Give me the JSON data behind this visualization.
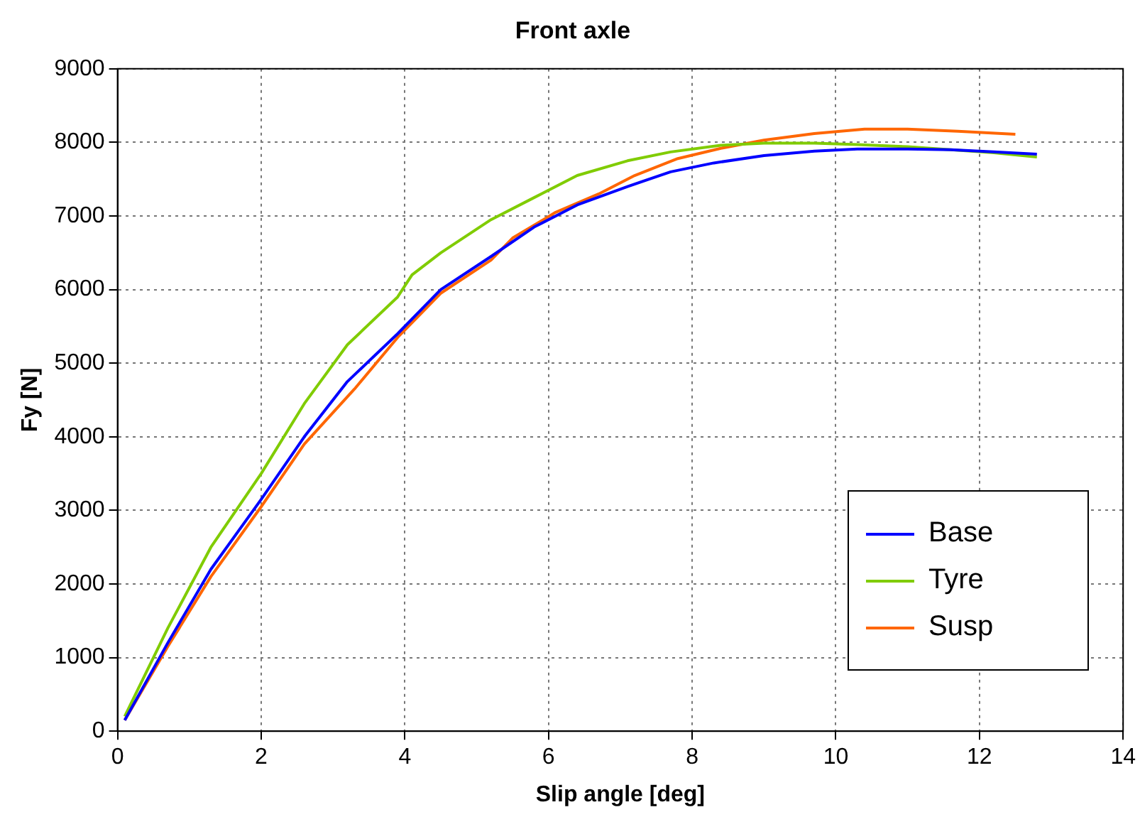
{
  "chart_data": {
    "type": "line",
    "title": "Front axle",
    "xlabel": "Slip angle [deg]",
    "ylabel": "Fy [N]",
    "xlim": [
      0,
      14
    ],
    "xticks": [
      0,
      2,
      4,
      6,
      8,
      10,
      12,
      14
    ],
    "ylim": [
      0,
      9000
    ],
    "yticks": [
      0,
      1000,
      2000,
      3000,
      4000,
      5000,
      6000,
      7000,
      8000,
      9000
    ],
    "grid": true,
    "legend": "bottom right",
    "marker": "none",
    "line_style": "solid",
    "series": [
      {
        "name": "Base",
        "color": "#0000ff",
        "x": [
          0.1,
          0.7,
          1.3,
          2,
          2.6,
          3.2,
          3.9,
          4.5,
          5.2,
          5.8,
          6.4,
          7.1,
          7.7,
          8.3,
          9,
          9.7,
          10.3,
          11,
          11.6,
          12.2,
          12.8
        ],
        "values": [
          150,
          1200,
          2200,
          3150,
          4000,
          4750,
          5400,
          6000,
          6450,
          6850,
          7150,
          7400,
          7600,
          7720,
          7820,
          7880,
          7910,
          7910,
          7900,
          7870,
          7840
        ]
      },
      {
        "name": "Tyre",
        "color": "#80cc00",
        "x": [
          0.1,
          0.7,
          1.3,
          2,
          2.6,
          3.2,
          3.9,
          4.1,
          4.5,
          5.2,
          5.8,
          6.4,
          7.1,
          7.7,
          8.4,
          9,
          9.7,
          10.3,
          11,
          11.6,
          12.2,
          12.8
        ],
        "values": [
          200,
          1400,
          2500,
          3500,
          4450,
          5250,
          5900,
          6200,
          6500,
          6950,
          7250,
          7550,
          7750,
          7870,
          7960,
          7990,
          7990,
          7970,
          7940,
          7900,
          7860,
          7800
        ]
      },
      {
        "name": "Susp",
        "color": "#ff6600",
        "x": [
          0.1,
          0.7,
          1.3,
          2,
          2.6,
          3.3,
          3.9,
          4.5,
          5.2,
          5.5,
          6.1,
          6.7,
          7.2,
          7.8,
          8.4,
          9,
          9.7,
          10.4,
          11,
          11.7,
          12.5
        ],
        "values": [
          150,
          1150,
          2100,
          3050,
          3900,
          4650,
          5350,
          5950,
          6400,
          6700,
          7050,
          7300,
          7550,
          7780,
          7920,
          8030,
          8120,
          8180,
          8180,
          8150,
          8110
        ]
      }
    ]
  }
}
